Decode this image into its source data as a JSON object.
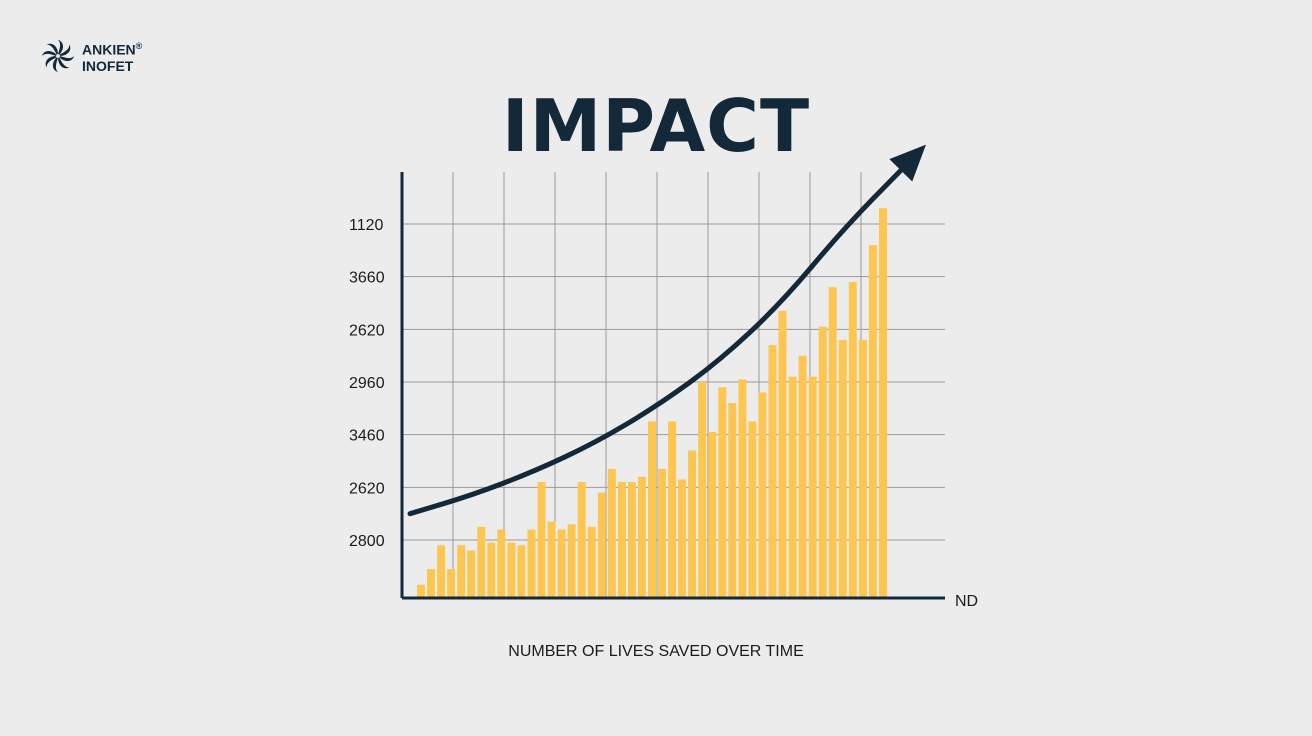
{
  "brand": {
    "name_line1": "ANKIEN",
    "registered_mark": "®",
    "name_line2": "INOFET",
    "logo_icon": "pinwheel-icon",
    "color": "#13293a"
  },
  "colors": {
    "background": "#ececec",
    "bar": "#fcc650",
    "trend_arrow": "#13293a",
    "axis": "#13293a",
    "grid": "#9a9a9a"
  },
  "chart_data": {
    "type": "bar",
    "title": "IMPACT",
    "xlabel": "ND",
    "ylabel": "",
    "caption": "NUMBER OF LIVES SAVED OVER TIME",
    "y_tick_labels": [
      "2800",
      "2620",
      "3460",
      "2960",
      "2620",
      "3660",
      "1120"
    ],
    "y_tick_values": [
      1,
      2,
      3,
      4,
      5,
      6,
      7
    ],
    "ylim": [
      0,
      8
    ],
    "grid": true,
    "vertical_grid_lines": 9,
    "legend": "none",
    "trend_arrow": {
      "values": [
        1.5,
        1.85,
        2.3,
        2.85,
        3.55,
        4.4,
        5.5,
        6.9,
        8.1
      ]
    },
    "values": [
      0.15,
      0.45,
      0.9,
      0.45,
      0.9,
      0.8,
      1.25,
      0.95,
      1.2,
      0.95,
      0.9,
      1.2,
      2.1,
      1.35,
      1.2,
      1.3,
      2.1,
      1.25,
      1.9,
      2.35,
      2.1,
      2.1,
      2.2,
      3.25,
      2.35,
      3.25,
      2.15,
      2.7,
      4.0,
      3.05,
      3.9,
      3.6,
      4.05,
      3.25,
      3.8,
      4.7,
      5.35,
      4.1,
      4.5,
      4.1,
      5.05,
      5.8,
      4.8,
      5.9,
      4.8,
      6.6,
      7.3
    ]
  }
}
